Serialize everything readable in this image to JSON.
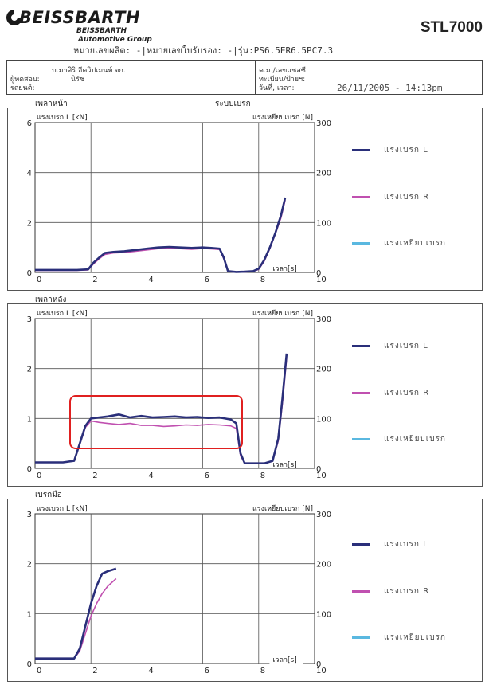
{
  "header": {
    "brand": "BEISSBARTH",
    "sub_brand_1": "BEISSBARTH",
    "sub_brand_2": "Automotive Group",
    "model": "STL7000",
    "ids_line": "หมายเลขผลิต:  -|หมายเลขใบรับรอง:  -|รุ่น:PS6.5ER6.5PC7.3"
  },
  "info": {
    "company": "บ.มาศิริ อีควิปเมนท์ จก.",
    "tester_label": "ผู้ทดสอบ:",
    "tester_value": "นิรัช",
    "car_label": "รถยนต์:",
    "reg_label": "ค.ม./เลขแชสซี:",
    "plate_label": "ทะเบียน/ป้ายฯ:",
    "datetime_label": "วันที่, เวลา:",
    "datetime_value": "26/11/2005 - 14:13pm"
  },
  "colors": {
    "left": "#2a2f7a",
    "right": "#c050b0",
    "pedal": "#5ab8e0",
    "highlight": "#e02020"
  },
  "sections": [
    {
      "title": "เพลาหน้า",
      "extra": "ระบบเบรก"
    },
    {
      "title": "เพลาหลัง",
      "extra": ""
    },
    {
      "title": "เบรกมือ",
      "extra": ""
    }
  ],
  "chart_data": [
    {
      "type": "line",
      "title": "เพลาหน้า",
      "ylabel": "แรงเบรก L [kN]",
      "y2label": "แรงเหยียบเบรก [N]",
      "xlabel": "เวลา[s]",
      "xlim": [
        0,
        10
      ],
      "ylim": [
        0,
        6
      ],
      "y2lim": [
        0,
        300
      ],
      "xticks": [
        0,
        2,
        4,
        6,
        8,
        10
      ],
      "yticks": [
        0,
        2,
        4,
        6
      ],
      "y2ticks": [
        0,
        100,
        200,
        300
      ],
      "legend_position": "right",
      "series": [
        {
          "name": "แรงเบรก L",
          "color_key": "left",
          "x": [
            0,
            0.5,
            1.0,
            1.5,
            1.9,
            2.1,
            2.3,
            2.5,
            2.8,
            3.2,
            3.6,
            4.0,
            4.4,
            4.8,
            5.2,
            5.6,
            6.0,
            6.3,
            6.6,
            6.75,
            6.9,
            7.2,
            7.5,
            7.8,
            8.0,
            8.2,
            8.4,
            8.6,
            8.8,
            8.95
          ],
          "y": [
            0.1,
            0.1,
            0.1,
            0.1,
            0.12,
            0.4,
            0.6,
            0.78,
            0.82,
            0.85,
            0.9,
            0.95,
            1.0,
            1.02,
            1.0,
            0.98,
            1.0,
            0.98,
            0.95,
            0.6,
            0.05,
            0.02,
            0.03,
            0.05,
            0.15,
            0.5,
            1.0,
            1.6,
            2.3,
            3.0
          ]
        },
        {
          "name": "แรงเบรก R",
          "color_key": "right",
          "x": [
            0,
            0.5,
            1.0,
            1.5,
            1.9,
            2.1,
            2.3,
            2.5,
            2.8,
            3.2,
            3.6,
            4.0,
            4.4,
            4.8,
            5.2,
            5.6,
            6.0,
            6.3,
            6.6,
            6.75,
            6.9,
            7.2,
            7.5,
            7.8,
            8.0,
            8.2,
            8.4,
            8.6,
            8.8,
            8.95
          ],
          "y": [
            0.08,
            0.08,
            0.08,
            0.08,
            0.1,
            0.35,
            0.55,
            0.72,
            0.78,
            0.8,
            0.85,
            0.9,
            0.95,
            0.98,
            0.95,
            0.93,
            0.96,
            0.94,
            0.92,
            0.55,
            0.03,
            0.02,
            0.02,
            0.04,
            0.12,
            0.45,
            0.95,
            1.55,
            2.2,
            2.9
          ]
        },
        {
          "name": "แรงเหยียบเบรก",
          "color_key": "pedal",
          "x": [],
          "y": []
        }
      ]
    },
    {
      "type": "line",
      "title": "เพลาหลัง",
      "ylabel": "แรงเบรก L [kN]",
      "y2label": "แรงเหยียบเบรก [N]",
      "xlabel": "เวลา[s]",
      "xlim": [
        0,
        10
      ],
      "ylim": [
        0,
        3
      ],
      "y2lim": [
        0,
        300
      ],
      "xticks": [
        0,
        2,
        4,
        6,
        8,
        10
      ],
      "yticks": [
        0,
        1,
        2,
        3
      ],
      "y2ticks": [
        0,
        100,
        200,
        300
      ],
      "legend_position": "right",
      "series": [
        {
          "name": "แรงเบรก L",
          "color_key": "left",
          "x": [
            0,
            0.5,
            1.0,
            1.4,
            1.6,
            1.8,
            2.0,
            2.3,
            2.6,
            3.0,
            3.4,
            3.8,
            4.2,
            4.6,
            5.0,
            5.4,
            5.8,
            6.2,
            6.6,
            7.0,
            7.2,
            7.35,
            7.5,
            7.8,
            8.2,
            8.5,
            8.7,
            8.85,
            9.0
          ],
          "y": [
            0.12,
            0.12,
            0.12,
            0.15,
            0.5,
            0.85,
            1.0,
            1.02,
            1.04,
            1.08,
            1.02,
            1.05,
            1.02,
            1.03,
            1.04,
            1.02,
            1.03,
            1.01,
            1.02,
            0.98,
            0.9,
            0.3,
            0.1,
            0.1,
            0.1,
            0.15,
            0.6,
            1.4,
            2.3
          ]
        },
        {
          "name": "แรงเบรก R",
          "color_key": "right",
          "x": [
            0,
            0.5,
            1.0,
            1.4,
            1.6,
            1.8,
            2.0,
            2.3,
            2.6,
            3.0,
            3.4,
            3.8,
            4.2,
            4.6,
            5.0,
            5.4,
            5.8,
            6.2,
            6.6,
            7.0,
            7.2,
            7.35,
            7.5,
            7.8,
            8.2,
            8.5,
            8.7,
            8.85,
            9.0
          ],
          "y": [
            0.12,
            0.12,
            0.12,
            0.15,
            0.48,
            0.82,
            0.95,
            0.92,
            0.9,
            0.88,
            0.9,
            0.86,
            0.86,
            0.84,
            0.85,
            0.87,
            0.86,
            0.88,
            0.87,
            0.85,
            0.8,
            0.25,
            0.1,
            0.1,
            0.1,
            0.14,
            0.55,
            1.3,
            2.2
          ]
        },
        {
          "name": "แรงเหยียบเบรก",
          "color_key": "pedal",
          "x": [],
          "y": []
        }
      ]
    },
    {
      "type": "line",
      "title": "เบรกมือ",
      "ylabel": "แรงเบรก L [kN]",
      "y2label": "แรงเหยียบเบรก [N]",
      "xlabel": "เวลา[s]",
      "xlim": [
        0,
        10
      ],
      "ylim": [
        0,
        3
      ],
      "y2lim": [
        0,
        300
      ],
      "xticks": [
        0,
        2,
        4,
        6,
        8,
        10
      ],
      "yticks": [
        0,
        1,
        2,
        3
      ],
      "y2ticks": [
        0,
        100,
        200,
        300
      ],
      "legend_position": "right",
      "series": [
        {
          "name": "แรงเบรก L",
          "color_key": "left",
          "x": [
            0,
            0.5,
            1.0,
            1.4,
            1.6,
            1.8,
            2.0,
            2.2,
            2.4,
            2.6,
            2.9
          ],
          "y": [
            0.1,
            0.1,
            0.1,
            0.1,
            0.3,
            0.75,
            1.2,
            1.55,
            1.8,
            1.85,
            1.9
          ]
        },
        {
          "name": "แรงเบรก R",
          "color_key": "right",
          "x": [
            0,
            0.5,
            1.0,
            1.4,
            1.6,
            1.8,
            2.0,
            2.2,
            2.4,
            2.6,
            2.9
          ],
          "y": [
            0.1,
            0.1,
            0.1,
            0.1,
            0.25,
            0.6,
            0.95,
            1.2,
            1.4,
            1.55,
            1.7
          ]
        },
        {
          "name": "แรงเหยียบเบรก",
          "color_key": "pedal",
          "x": [],
          "y": []
        }
      ]
    }
  ]
}
